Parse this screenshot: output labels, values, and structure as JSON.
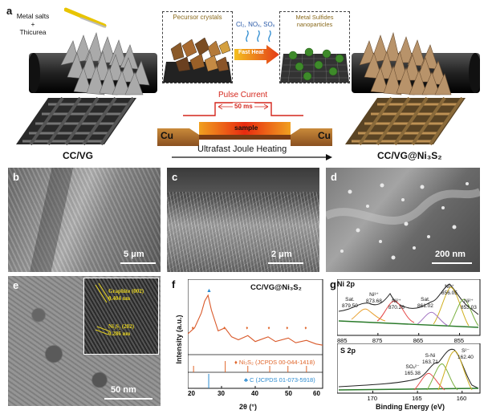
{
  "panel_a": {
    "letter": "a",
    "precursor_label_line1": "Metal salts",
    "precursor_label_line2": "Thicurea",
    "inset1_title": "Pecursor crystals",
    "gas_label": "Cl₂, NOₓ, SOₓ",
    "fast_heat_label": "Fast Heat",
    "inset2_title": "Metal Sulfides nanoparticles",
    "pulse_current_label": "Pulse Current",
    "duration_label": "50 ms",
    "sample_label": "sample",
    "electrode_left": "Cu",
    "electrode_right": "Cu",
    "process_label": "Ultrafast Joule Heating",
    "left_material": "CC/VG",
    "right_material": "CC/VG@Ni₃S₂"
  },
  "panel_b": {
    "letter": "b",
    "scale": "5 μm"
  },
  "panel_c": {
    "letter": "c",
    "scale": "2 μm"
  },
  "panel_d": {
    "letter": "d",
    "scale": "200 nm"
  },
  "panel_e": {
    "letter": "e",
    "scale": "50 nm",
    "inset_label1_line1": "Graphite (002)",
    "inset_label1_line2": "0.404 nm",
    "inset_label2_line1": "Ni₃S₂ (202)",
    "inset_label2_line2": "0.286 nm"
  },
  "panel_f": {
    "letter": "f",
    "title": "CC/VG@Ni₃S₂",
    "ylabel": "Intensity (a.u.)",
    "xlabel": "2θ (°)",
    "ref1": "♦ Ni₃S₂ (JCPDS 00-044-1418)",
    "ref2": "♣ C (JCPDS 01-073-5918)",
    "ref1_color": "#e0652a",
    "ref2_color": "#2a8ad0",
    "pattern_color": "#d9592a"
  },
  "panel_g": {
    "letter": "g",
    "ni_title": "Ni 2p",
    "s_title": "S 2p",
    "xlabel": "Binding Energy (eV)",
    "ni_peaks": [
      {
        "name": "Sat.",
        "energy": "879.50"
      },
      {
        "name": "Ni³⁺",
        "energy": "873.68"
      },
      {
        "name": "Ni²⁺",
        "energy": "870.26"
      },
      {
        "name": "Sat.",
        "energy": "861.02"
      },
      {
        "name": "Ni³⁺",
        "energy": "856.05"
      },
      {
        "name": "Ni²⁺",
        "energy": "853.03"
      }
    ],
    "s_peaks": [
      {
        "name": "SOₓ²⁻",
        "energy": "165.38"
      },
      {
        "name": "S-Ni",
        "energy": "163.71"
      },
      {
        "name": "S²⁻",
        "energy": "162.40"
      }
    ]
  },
  "chart_data": [
    {
      "type": "line",
      "title": "CC/VG@Ni₃S₂",
      "xlabel": "2θ (°)",
      "ylabel": "Intensity (a.u.)",
      "xlim": [
        20,
        60
      ],
      "xticks": [
        20,
        30,
        40,
        50,
        60
      ],
      "x": [
        20,
        22,
        24,
        25,
        26,
        27,
        29,
        31,
        33,
        35,
        37.8,
        40,
        43.8,
        46,
        49.8,
        52,
        55.2,
        58,
        60
      ],
      "series": [
        {
          "values": [
            0.35,
            0.45,
            0.7,
            0.9,
            1.0,
            0.75,
            0.4,
            0.45,
            0.3,
            0.25,
            0.32,
            0.22,
            0.3,
            0.22,
            0.28,
            0.2,
            0.24,
            0.18,
            0.16
          ]
        }
      ],
      "reference_Ni3S2": [
        21.7,
        31.1,
        37.8,
        44.3,
        49.7,
        55.2
      ],
      "reference_C": [
        26.2
      ]
    },
    {
      "type": "line",
      "title": "Ni 2p",
      "xlabel": "Binding Energy (eV)",
      "xlim": [
        885,
        850
      ],
      "xticks": [
        885,
        875,
        865,
        855
      ],
      "peaks": [
        879.5,
        873.68,
        870.26,
        861.02,
        856.05,
        853.03
      ]
    },
    {
      "type": "line",
      "title": "S 2p",
      "xlabel": "Binding Energy (eV)",
      "xlim": [
        174,
        158
      ],
      "xticks": [
        170,
        165,
        160
      ],
      "peaks": [
        165.38,
        163.71,
        162.4
      ]
    }
  ]
}
